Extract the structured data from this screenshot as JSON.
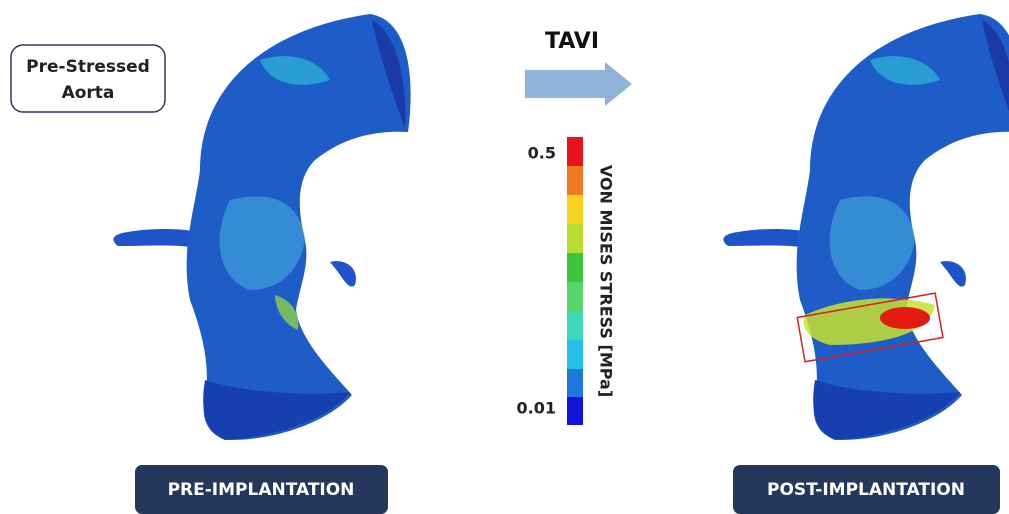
{
  "annotation": {
    "lines": [
      "Pre-Stressed",
      "Aorta"
    ]
  },
  "arrow_label": "TAVI",
  "colorbar": {
    "max_label": 0.5,
    "min_label": 0.01,
    "title": "VON MISES STRESS [MPa]"
  },
  "panels": [
    {
      "label": "PRE-IMPLANTATION"
    },
    {
      "label": "POST-IMPLANTATION"
    }
  ]
}
